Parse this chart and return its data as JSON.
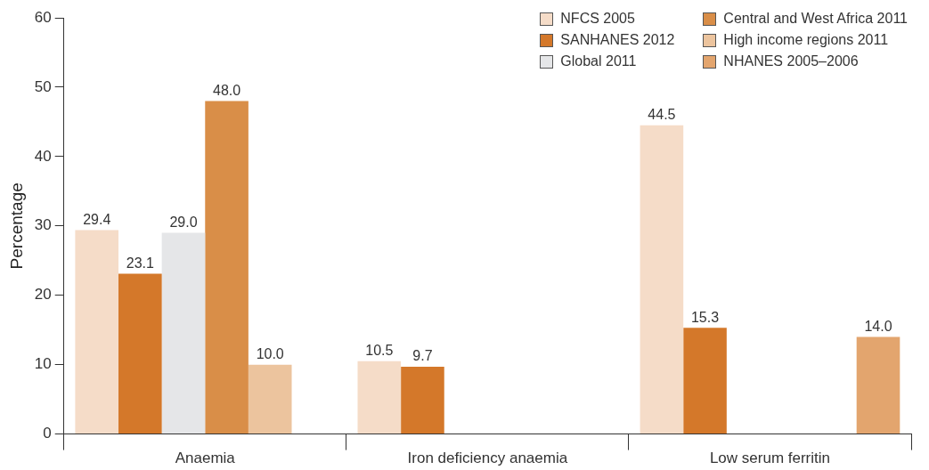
{
  "chart_data": {
    "type": "bar",
    "ylabel": "Percentage",
    "categories": [
      "Anaemia",
      "Iron deficiency anaemia",
      "Low serum ferritin"
    ],
    "series": [
      {
        "name": "NFCS 2005",
        "color": "#f5dcc8",
        "values": [
          29.4,
          10.5,
          44.5
        ],
        "value_labels": [
          "29.4",
          "10.5",
          "44.5"
        ]
      },
      {
        "name": "SANHANES 2012",
        "color": "#d4782a",
        "values": [
          23.1,
          9.7,
          15.3
        ],
        "value_labels": [
          "23.1",
          "9.7",
          "15.3"
        ]
      },
      {
        "name": "Global 2011",
        "color": "#e5e6e8",
        "values": [
          29.0,
          null,
          null
        ],
        "value_labels": [
          "29.0",
          null,
          null
        ]
      },
      {
        "name": "Central and West Africa 2011",
        "color": "#d98e48",
        "values": [
          48.0,
          null,
          null
        ],
        "value_labels": [
          "48.0",
          null,
          null
        ]
      },
      {
        "name": "High income regions 2011",
        "color": "#ecc49e",
        "values": [
          10.0,
          null,
          null
        ],
        "value_labels": [
          "10.0",
          null,
          null
        ]
      },
      {
        "name": "NHANES 2005–2006",
        "color": "#e3a56e",
        "values": [
          null,
          null,
          14.0
        ],
        "value_labels": [
          null,
          null,
          "14.0"
        ]
      }
    ],
    "ylim": [
      0,
      60
    ],
    "yticks": [
      0,
      10,
      20,
      30,
      40,
      50,
      60
    ],
    "grid": false,
    "legend": "top right"
  }
}
